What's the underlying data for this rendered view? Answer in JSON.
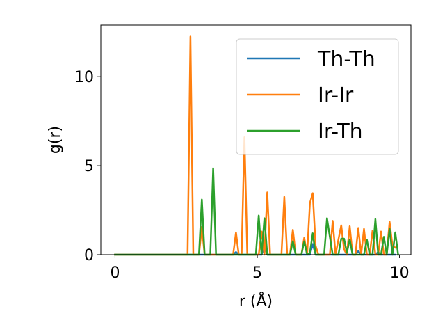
{
  "chart_data": {
    "type": "line",
    "title": "",
    "xlabel": "r (Å)",
    "ylabel": "g(r)",
    "xlim": [
      -0.5,
      10.4
    ],
    "ylim": [
      0,
      12.9
    ],
    "xticks": [
      0,
      5,
      10
    ],
    "yticks": [
      0,
      5,
      10
    ],
    "grid": false,
    "legend": "upper right",
    "series": [
      {
        "name": "Th-Th",
        "color": "#1f77b4",
        "x": [
          0,
          4.15,
          4.25,
          4.35,
          5.15,
          5.25,
          5.35,
          6.85,
          6.95,
          7.05,
          8.45,
          8.55,
          8.65,
          9.15,
          9.25,
          9.35,
          9.85
        ],
        "y": [
          0,
          0,
          0.15,
          0,
          0,
          0.45,
          0,
          0,
          0.6,
          0,
          0,
          0.2,
          0,
          0,
          0.15,
          0,
          0
        ]
      },
      {
        "name": "Ir-Ir",
        "color": "#ff7f0e",
        "x": [
          0,
          2.55,
          2.65,
          2.75,
          2.95,
          3.05,
          3.15,
          4.15,
          4.25,
          4.35,
          4.45,
          4.55,
          4.65,
          5.05,
          5.15,
          5.25,
          5.35,
          5.45,
          5.55,
          5.85,
          5.95,
          6.05,
          6.15,
          6.25,
          6.35,
          6.55,
          6.65,
          6.75,
          6.85,
          6.95,
          7.05,
          7.15,
          7.55,
          7.65,
          7.75,
          7.85,
          7.95,
          8.05,
          8.15,
          8.25,
          8.35,
          8.45,
          8.55,
          8.65,
          8.75,
          8.85,
          8.95,
          9.05,
          9.15,
          9.25,
          9.35,
          9.45,
          9.55,
          9.65,
          9.75,
          9.85
        ],
        "y": [
          0,
          0,
          12.25,
          0,
          0,
          1.55,
          0,
          0,
          1.25,
          0,
          0,
          6.6,
          0,
          0,
          1.3,
          0,
          3.5,
          0,
          0,
          0,
          3.25,
          0,
          0,
          1.4,
          0,
          0,
          0.95,
          0,
          2.9,
          3.45,
          0.5,
          0,
          0,
          1.9,
          0,
          0.85,
          1.65,
          0.3,
          0,
          1.6,
          0,
          0,
          1.5,
          0,
          1.45,
          0,
          0,
          1.35,
          0,
          0,
          1.3,
          0,
          0,
          1.85,
          0.5,
          0.4
        ]
      },
      {
        "name": "Ir-Th",
        "color": "#2ca02c",
        "x": [
          0,
          2.95,
          3.05,
          3.15,
          3.35,
          3.45,
          3.55,
          4.95,
          5.05,
          5.15,
          5.25,
          5.35,
          6.15,
          6.25,
          6.35,
          6.55,
          6.65,
          6.75,
          6.85,
          6.95,
          7.05,
          7.35,
          7.45,
          7.55,
          7.65,
          7.85,
          7.95,
          8.05,
          8.15,
          8.25,
          8.35,
          8.75,
          8.85,
          8.95,
          9.05,
          9.15,
          9.25,
          9.35,
          9.45,
          9.55,
          9.65,
          9.75,
          9.85,
          9.95
        ],
        "y": [
          0,
          0,
          3.1,
          0,
          0,
          4.85,
          0,
          0,
          2.2,
          0,
          2.05,
          0,
          0,
          0.75,
          0,
          0,
          0.75,
          0,
          0.1,
          1.2,
          0,
          0,
          2.05,
          1.0,
          0,
          0,
          0.9,
          0.9,
          0.1,
          0.85,
          0,
          0,
          0.85,
          0,
          0,
          2.0,
          0,
          0,
          1.0,
          0,
          1.45,
          0,
          1.25,
          0
        ]
      }
    ]
  }
}
